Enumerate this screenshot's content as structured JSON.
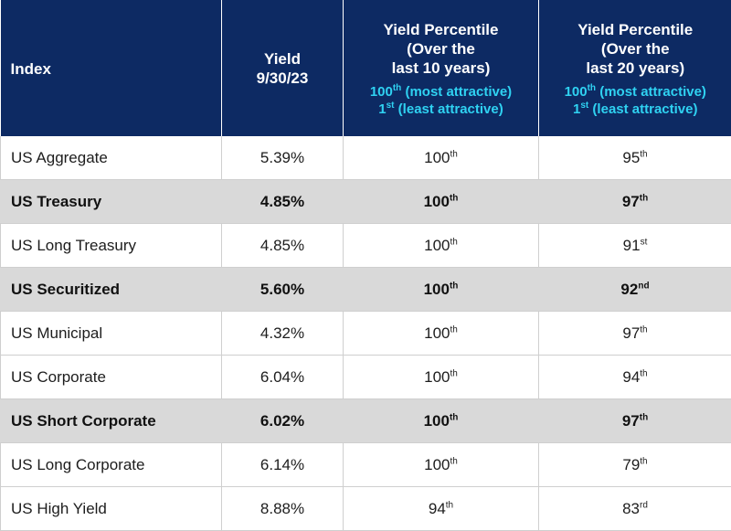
{
  "header": {
    "index": "Index",
    "yield_line1": "Yield",
    "yield_line2": "9/30/23",
    "p10_line1": "Yield Percentile",
    "p10_line2": "(Over the",
    "p10_line3": "last 10 years)",
    "p20_line1": "Yield Percentile",
    "p20_line2": "(Over the",
    "p20_line3": "last 20 years)",
    "legend_top_num": "100",
    "legend_top_sup": "th",
    "legend_top_text": " (most attractive)",
    "legend_bottom_num": "1",
    "legend_bottom_sup": "st",
    "legend_bottom_text": " (least attractive)"
  },
  "colors": {
    "header_bg": "#0d2a63",
    "header_text": "#ffffff",
    "header_sub": "#2fd2f2",
    "highlight_row": "#d9d9d9"
  },
  "rows": [
    {
      "index": "US Aggregate",
      "yield": "5.39%",
      "p10": "100",
      "p10_sup": "th",
      "p20": "95",
      "p20_sup": "th",
      "highlight": false
    },
    {
      "index": "US Treasury",
      "yield": "4.85%",
      "p10": "100",
      "p10_sup": "th",
      "p20": "97",
      "p20_sup": "th",
      "highlight": true
    },
    {
      "index": "US Long Treasury",
      "yield": "4.85%",
      "p10": "100",
      "p10_sup": "th",
      "p20": "91",
      "p20_sup": "st",
      "highlight": false
    },
    {
      "index": "US Securitized",
      "yield": "5.60%",
      "p10": "100",
      "p10_sup": "th",
      "p20": "92",
      "p20_sup": "nd",
      "highlight": true
    },
    {
      "index": "US Municipal",
      "yield": "4.32%",
      "p10": "100",
      "p10_sup": "th",
      "p20": "97",
      "p20_sup": "th",
      "highlight": false
    },
    {
      "index": "US Corporate",
      "yield": "6.04%",
      "p10": "100",
      "p10_sup": "th",
      "p20": "94",
      "p20_sup": "th",
      "highlight": false
    },
    {
      "index": "US Short Corporate",
      "yield": "6.02%",
      "p10": "100",
      "p10_sup": "th",
      "p20": "97",
      "p20_sup": "th",
      "highlight": true
    },
    {
      "index": "US Long Corporate",
      "yield": "6.14%",
      "p10": "100",
      "p10_sup": "th",
      "p20": "79",
      "p20_sup": "th",
      "highlight": false
    },
    {
      "index": "US High Yield",
      "yield": "8.88%",
      "p10": "94",
      "p10_sup": "th",
      "p20": "83",
      "p20_sup": "rd",
      "highlight": false
    }
  ]
}
